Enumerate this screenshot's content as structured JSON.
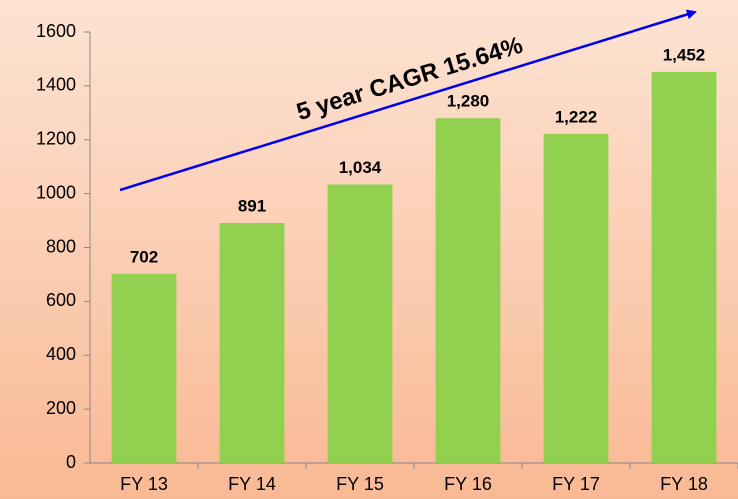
{
  "chart_data": {
    "type": "bar",
    "annotation": "5 year CAGR 15.64%",
    "categories": [
      "FY 13",
      "FY 14",
      "FY 15",
      "FY 16",
      "FY 17",
      "FY 18"
    ],
    "values": [
      702,
      891,
      1034,
      1280,
      1222,
      1452
    ],
    "value_labels": [
      "702",
      "891",
      "1,034",
      "1,280",
      "1,222",
      "1,452"
    ],
    "color": "#92d050",
    "ylim": [
      0,
      1600
    ],
    "yticks": [
      0,
      200,
      400,
      600,
      800,
      1000,
      1200,
      1400,
      1600
    ],
    "grid": false
  }
}
